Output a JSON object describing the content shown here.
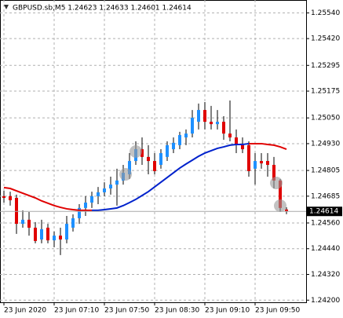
{
  "chart_data": {
    "type": "candlestick",
    "title": "GBPUSD.sb,M5  1.24623 1.24633 1.24601 1.24614",
    "categories": [
      "23 Jun 2020",
      null,
      null,
      null,
      null,
      null,
      null,
      null,
      "23 Jun 07:10",
      null,
      null,
      null,
      null,
      null,
      null,
      null,
      "23 Jun 07:50",
      null,
      null,
      null,
      null,
      null,
      null,
      null,
      "23 Jun 08:30",
      null,
      null,
      null,
      null,
      null,
      null,
      null,
      "23 Jun 09:10",
      null,
      null,
      null,
      null,
      null,
      null,
      null,
      "23 Jun 09:50",
      null,
      null,
      null,
      null,
      null
    ],
    "open": [
      1.24685,
      1.24685,
      1.24677,
      1.24556,
      1.24575,
      1.24538,
      1.24483,
      1.24538,
      1.24479,
      1.24501,
      1.24483,
      1.24538,
      1.24582,
      1.2463,
      1.24655,
      1.24685,
      1.24703,
      1.24721,
      1.24739,
      1.24758,
      1.24787,
      1.24849,
      1.24904,
      1.24868,
      1.24849,
      1.24831,
      1.24868,
      1.24904,
      1.24923,
      1.24959,
      1.24977,
      1.25032,
      1.25087,
      1.25032,
      1.25021,
      1.25032,
      1.24977,
      1.24959,
      1.24923,
      1.24923,
      1.24813,
      1.24849,
      1.24849,
      1.24831,
      1.24758,
      1.24623
    ],
    "high": [
      1.2471,
      1.24706,
      1.24692,
      1.24619,
      1.24611,
      1.24564,
      1.24575,
      1.24556,
      1.2452,
      1.24538,
      1.24593,
      1.246,
      1.24648,
      1.24685,
      1.24706,
      1.24728,
      1.2475,
      1.24776,
      1.24813,
      1.24831,
      1.24886,
      1.24941,
      1.24959,
      1.24923,
      1.24886,
      1.24904,
      1.24941,
      1.24959,
      1.24985,
      1.24996,
      1.25087,
      1.25117,
      1.25124,
      1.25106,
      1.25087,
      1.25058,
      1.25131,
      1.24996,
      1.24959,
      1.24941,
      1.24886,
      1.24886,
      1.24886,
      1.24868,
      1.24765,
      1.24633
    ],
    "low": [
      1.24655,
      1.24641,
      1.24509,
      1.24538,
      1.24501,
      1.24465,
      1.24465,
      1.24465,
      1.24447,
      1.2441,
      1.24465,
      1.2452,
      1.24556,
      1.24593,
      1.2463,
      1.24648,
      1.24685,
      1.24692,
      1.24641,
      1.24739,
      1.24765,
      1.24831,
      1.24831,
      1.24787,
      1.24787,
      1.24813,
      1.24849,
      1.24886,
      1.24904,
      1.24923,
      1.24959,
      1.24996,
      1.24996,
      1.24996,
      1.24996,
      1.24948,
      1.24941,
      1.24886,
      1.24886,
      1.24776,
      1.24739,
      1.24813,
      1.24776,
      1.24721,
      1.24611,
      1.24601
    ],
    "close": [
      1.24677,
      1.24666,
      1.24556,
      1.24575,
      1.24538,
      1.24476,
      1.24531,
      1.24479,
      1.24501,
      1.24483,
      1.24556,
      1.24582,
      1.2463,
      1.24655,
      1.24685,
      1.24703,
      1.24721,
      1.24739,
      1.24758,
      1.24794,
      1.24849,
      1.24904,
      1.24868,
      1.24849,
      1.24802,
      1.24886,
      1.24923,
      1.24934,
      1.2497,
      1.24977,
      1.25051,
      1.25087,
      1.25032,
      1.25021,
      1.25032,
      1.24977,
      1.24959,
      1.24923,
      1.24904,
      1.24802,
      1.24849,
      1.24838,
      1.24831,
      1.24758,
      1.2463,
      1.24614
    ],
    "up_color": "#1e90ff",
    "down_color": "#e00000",
    "lines": [
      {
        "color": "#e00000",
        "values": [
          1.24725,
          1.24721,
          1.2471,
          1.24699,
          1.24688,
          1.24677,
          1.24663,
          1.24652,
          1.24641,
          1.24633,
          1.24626,
          1.24622,
          1.24619,
          1.24619,
          1.24619,
          null,
          null,
          null,
          null,
          null,
          null,
          null,
          null,
          null,
          null,
          null,
          null,
          null,
          null,
          null,
          null,
          null,
          null,
          null,
          null,
          null,
          null,
          null,
          null,
          1.2493,
          1.2493,
          1.2493,
          1.24926,
          1.24923,
          1.24915,
          1.24904
        ]
      },
      {
        "color": "#0022cc",
        "values": [
          null,
          null,
          null,
          null,
          null,
          null,
          null,
          null,
          null,
          null,
          null,
          null,
          null,
          null,
          1.24619,
          1.24619,
          1.24622,
          1.24626,
          1.2463,
          1.24641,
          1.24655,
          1.2467,
          1.24688,
          1.24706,
          1.24728,
          1.2475,
          1.24772,
          1.24794,
          1.24816,
          1.24835,
          1.24853,
          1.24871,
          1.24886,
          1.24897,
          1.24908,
          1.24915,
          1.24923,
          1.24926,
          1.24926,
          1.2493,
          null,
          null,
          null,
          null,
          null,
          null
        ]
      }
    ],
    "current_price": 1.24614,
    "ylim": [
      1.2419,
      1.256
    ],
    "yticks": [
      {
        "value": 1.2554,
        "label": "1.25540"
      },
      {
        "value": 1.2542,
        "label": "1.25420"
      },
      1.25295,
      1.25175,
      {
        "value": 1.2505,
        "label": "1.25050"
      },
      {
        "value": 1.2493,
        "label": "1.24930"
      },
      1.24805,
      1.24685,
      {
        "value": 1.2456,
        "label": "1.24560"
      },
      {
        "value": 1.2444,
        "label": "1.24440"
      },
      {
        "value": 1.2432,
        "label": "1.24320"
      },
      {
        "value": 1.242,
        "label": "1.24200"
      }
    ],
    "grid": true
  }
}
